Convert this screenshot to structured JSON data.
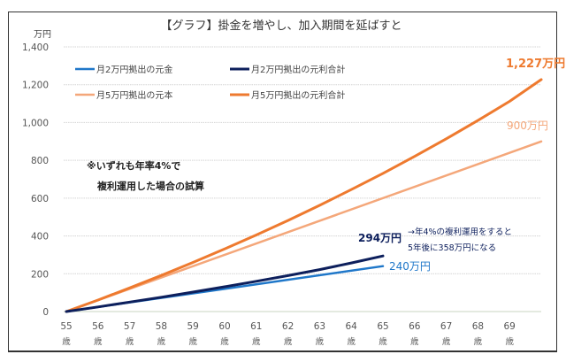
{
  "chart_data": {
    "type": "line",
    "title": "【グラフ】掛金を増やし、加入期間を延ばすと",
    "ylabel": "万円",
    "xlabel": "",
    "ylim": [
      0,
      1400
    ],
    "xlim": [
      55,
      70
    ],
    "grid": true,
    "legend_position": "top-left",
    "yticks": [
      {
        "value": 0,
        "label": "0"
      },
      {
        "value": 200,
        "label": "200"
      },
      {
        "value": 400,
        "label": "400"
      },
      {
        "value": 600,
        "label": "600"
      },
      {
        "value": 800,
        "label": "800"
      },
      {
        "value": 1000,
        "label": "1,000"
      },
      {
        "value": 1200,
        "label": "1,200"
      },
      {
        "value": 1400,
        "label": "1,400"
      }
    ],
    "xticks": [
      {
        "value": 55,
        "label": "55",
        "unit": "歳"
      },
      {
        "value": 56,
        "label": "56",
        "unit": "歳"
      },
      {
        "value": 57,
        "label": "57",
        "unit": "歳"
      },
      {
        "value": 58,
        "label": "58",
        "unit": "歳"
      },
      {
        "value": 59,
        "label": "59",
        "unit": "歳"
      },
      {
        "value": 60,
        "label": "60",
        "unit": "歳"
      },
      {
        "value": 61,
        "label": "61",
        "unit": "歳"
      },
      {
        "value": 62,
        "label": "62",
        "unit": "歳"
      },
      {
        "value": 63,
        "label": "63",
        "unit": "歳"
      },
      {
        "value": 64,
        "label": "64",
        "unit": "歳"
      },
      {
        "value": 65,
        "label": "65",
        "unit": "歳"
      },
      {
        "value": 66,
        "label": "66",
        "unit": "歳"
      },
      {
        "value": 67,
        "label": "67",
        "unit": "歳"
      },
      {
        "value": 68,
        "label": "68",
        "unit": "歳"
      },
      {
        "value": 69,
        "label": "69",
        "unit": "歳"
      }
    ],
    "series": [
      {
        "name": "月2万円拠出の元金",
        "color": "#1f77c9",
        "width": 2.5,
        "x": [
          55,
          65
        ],
        "values": [
          0,
          240
        ]
      },
      {
        "name": "月2万円拠出の元利合計",
        "color": "#0d1f5c",
        "width": 3,
        "x": [
          55,
          56,
          57,
          58,
          59,
          60,
          61,
          62,
          63,
          64,
          65
        ],
        "values": [
          0,
          24.5,
          50,
          76,
          103,
          131,
          160,
          190,
          222,
          257,
          294
        ]
      },
      {
        "name": "月5万円拠出の元本",
        "color": "#f4a77a",
        "width": 2.5,
        "x": [
          55,
          70
        ],
        "values": [
          0,
          900
        ]
      },
      {
        "name": "月5万円拠出の元利合計",
        "color": "#ee7a2f",
        "width": 3,
        "x": [
          55,
          56,
          57,
          58,
          59,
          60,
          61,
          62,
          63,
          64,
          65,
          66,
          67,
          68,
          69,
          70
        ],
        "values": [
          0,
          61,
          125,
          191,
          260,
          331,
          405,
          482,
          562,
          645,
          731,
          821,
          914,
          1011,
          1112,
          1227
        ]
      }
    ],
    "annotations": {
      "end_1227": {
        "text": "1,227万円",
        "color": "#ee7a2f"
      },
      "end_900": {
        "text": "900万円",
        "color": "#f4a77a"
      },
      "end_294": {
        "text": "294万円",
        "color": "#0d1f5c"
      },
      "end_240": {
        "text": "240万円",
        "color": "#1f77c9"
      },
      "note_line1": "→年4%の複利運用をすると",
      "note_line2": "5年後に358万円になる",
      "assumption_line1": "※いずれも年率4%で",
      "assumption_line2": "複利運用した場合の試算"
    }
  }
}
